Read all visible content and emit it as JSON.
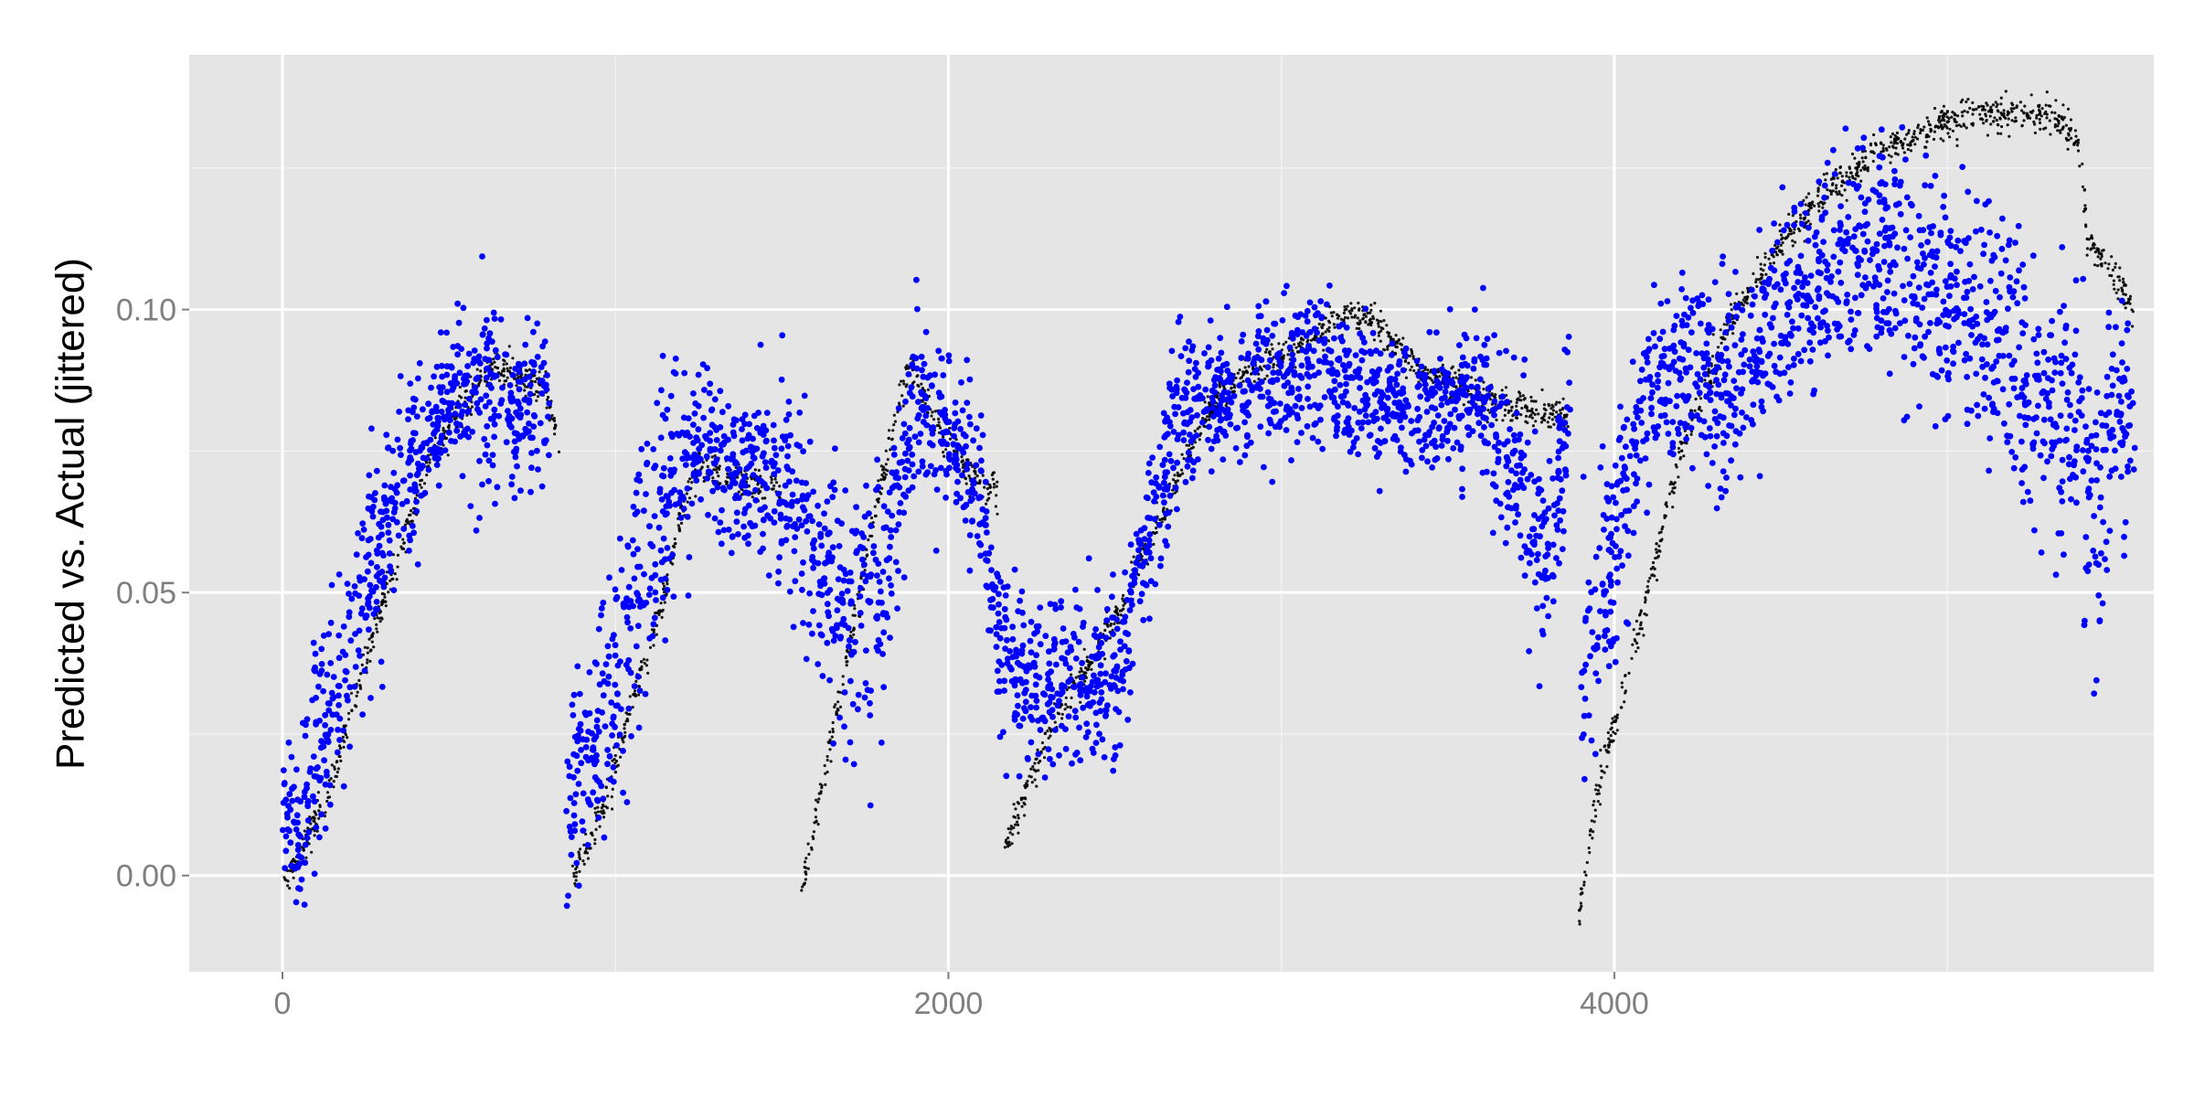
{
  "chart_data": {
    "type": "scatter",
    "title": "",
    "xlabel": "",
    "ylabel": "Predicted vs. Actual (jittered)",
    "xlim": [
      -280,
      5620
    ],
    "ylim": [
      -0.017,
      0.145
    ],
    "x_ticks": [
      0,
      2000,
      4000
    ],
    "x_tick_labels": [
      "0",
      "2000",
      "4000"
    ],
    "x_minor_ticks": [
      1000,
      3000,
      5000
    ],
    "y_ticks": [
      0.0,
      0.05,
      0.1
    ],
    "y_tick_labels": [
      "0.00",
      "0.05",
      "0.10"
    ],
    "y_minor_ticks": [
      0.025,
      0.075,
      0.125
    ],
    "grid": true,
    "legend": "none",
    "colors": {
      "panel": "#e5e5e5",
      "grid": "#ffffff",
      "actual": "#000000",
      "predicted": "#0000ff",
      "tick_text": "#7f7f7f"
    },
    "series": [
      {
        "role": "actual",
        "color": "#000000",
        "marker": "small dot",
        "noise": 0.0025,
        "x": [
          0,
          140,
          300,
          450,
          560,
          640,
          700,
          800,
          830,
          870,
          950,
          1050,
          1150,
          1200,
          1250,
          1350,
          1500,
          1560,
          1700,
          1800,
          1880,
          1950,
          2050,
          2150,
          2170,
          2300,
          2500,
          2650,
          2800,
          2950,
          3100,
          3200,
          3280,
          3400,
          3600,
          3750,
          3860,
          3890,
          3950,
          4080,
          4200,
          4350,
          4500,
          4650,
          4800,
          4950,
          5100,
          5250,
          5350,
          5400,
          5420,
          5480,
          5560
        ],
        "y": [
          -0.003,
          0.015,
          0.048,
          0.075,
          0.085,
          0.09,
          0.088,
          0.085,
          0.075,
          0.0,
          0.01,
          0.03,
          0.05,
          0.065,
          0.073,
          0.07,
          0.068,
          -0.003,
          0.04,
          0.07,
          0.09,
          0.082,
          0.072,
          0.067,
          0.005,
          0.025,
          0.045,
          0.065,
          0.085,
          0.09,
          0.095,
          0.1,
          0.098,
          0.09,
          0.085,
          0.082,
          0.081,
          -0.008,
          0.015,
          0.045,
          0.075,
          0.098,
          0.112,
          0.122,
          0.128,
          0.132,
          0.135,
          0.134,
          0.133,
          0.127,
          0.112,
          0.108,
          0.1
        ],
        "breaks_after_index": [
          8,
          16,
          23,
          36
        ]
      },
      {
        "role": "predicted",
        "color": "#0000ff",
        "marker": "dot",
        "x": [
          0,
          50,
          100,
          200,
          300,
          400,
          500,
          600,
          700,
          800,
          850,
          900,
          1000,
          1100,
          1200,
          1300,
          1400,
          1500,
          1600,
          1700,
          1800,
          1900,
          2000,
          2100,
          2150,
          2200,
          2300,
          2400,
          2500,
          2600,
          2700,
          2800,
          2900,
          3000,
          3100,
          3200,
          3300,
          3400,
          3500,
          3600,
          3700,
          3800,
          3870,
          3900,
          4000,
          4100,
          4200,
          4300,
          4400,
          4500,
          4600,
          4700,
          4800,
          4900,
          5000,
          5100,
          5200,
          5300,
          5400,
          5450,
          5500,
          5560
        ],
        "y": [
          0.015,
          0.01,
          0.02,
          0.04,
          0.06,
          0.075,
          0.083,
          0.085,
          0.08,
          0.085,
          0.01,
          0.02,
          0.035,
          0.06,
          0.075,
          0.075,
          0.07,
          0.07,
          0.055,
          0.045,
          0.05,
          0.085,
          0.08,
          0.065,
          0.04,
          0.035,
          0.035,
          0.032,
          0.033,
          0.06,
          0.082,
          0.085,
          0.085,
          0.088,
          0.09,
          0.087,
          0.085,
          0.083,
          0.082,
          0.085,
          0.07,
          0.055,
          0.085,
          0.03,
          0.06,
          0.085,
          0.09,
          0.085,
          0.09,
          0.1,
          0.105,
          0.11,
          0.11,
          0.105,
          0.1,
          0.095,
          0.09,
          0.085,
          0.08,
          0.06,
          0.085,
          0.08
        ],
        "spread": [
          0.01,
          0.012,
          0.015,
          0.015,
          0.015,
          0.013,
          0.01,
          0.015,
          0.012,
          0.01,
          0.012,
          0.015,
          0.018,
          0.02,
          0.015,
          0.012,
          0.012,
          0.015,
          0.015,
          0.018,
          0.018,
          0.012,
          0.012,
          0.012,
          0.012,
          0.012,
          0.012,
          0.012,
          0.012,
          0.012,
          0.012,
          0.01,
          0.01,
          0.01,
          0.012,
          0.01,
          0.01,
          0.01,
          0.01,
          0.01,
          0.015,
          0.018,
          0.01,
          0.015,
          0.018,
          0.012,
          0.012,
          0.015,
          0.015,
          0.015,
          0.015,
          0.015,
          0.018,
          0.018,
          0.018,
          0.02,
          0.02,
          0.02,
          0.025,
          0.02,
          0.02,
          0.02
        ],
        "breaks_after_index": [
          9,
          42
        ]
      }
    ]
  }
}
